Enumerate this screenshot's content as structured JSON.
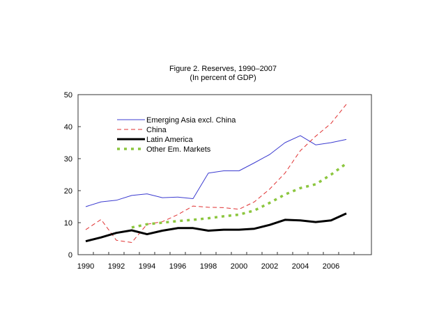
{
  "chart_data": {
    "type": "line",
    "title": "Figure 2. Reserves, 1990–2007",
    "subtitle": "(In percent of GDP)",
    "xlabel": "",
    "ylabel": "",
    "x": [
      1990,
      1991,
      1992,
      1993,
      1994,
      1995,
      1996,
      1997,
      1998,
      1999,
      2000,
      2001,
      2002,
      2003,
      2004,
      2005,
      2006,
      2007
    ],
    "xticks": [
      "1990",
      "1992",
      "1994",
      "1996",
      "1998",
      "2000",
      "2002",
      "2004",
      "2006"
    ],
    "yticks": [
      "0",
      "10",
      "20",
      "30",
      "40",
      "50"
    ],
    "ylim": [
      0,
      50
    ],
    "grid": false,
    "legend_position": "top-left",
    "series": [
      {
        "name": "Emerging Asia excl. China",
        "color": "#3b3bd0",
        "style": "solid-thin",
        "values": [
          15,
          16.5,
          17,
          18.5,
          19,
          17.8,
          18,
          17.5,
          25.5,
          26.2,
          26.2,
          28.7,
          31.3,
          35,
          37.2,
          34.3,
          35,
          36
        ]
      },
      {
        "name": "China",
        "color": "#e03030",
        "style": "dashed",
        "values": [
          7.8,
          11,
          4.5,
          3.8,
          9.5,
          10.3,
          12.5,
          15.2,
          14.8,
          14.7,
          14.2,
          16.5,
          20.5,
          25.5,
          32.5,
          37,
          41,
          47
        ]
      },
      {
        "name": "Latin America",
        "color": "#000000",
        "style": "solid-thick",
        "values": [
          4.2,
          5.4,
          6.8,
          7.6,
          6.4,
          7.5,
          8.3,
          8.3,
          7.5,
          7.8,
          7.8,
          8.1,
          9.3,
          10.9,
          10.7,
          10.2,
          10.7,
          12.9
        ]
      },
      {
        "name": "Other Em. Markets",
        "color": "#8cc63f",
        "style": "dotted",
        "values": [
          null,
          null,
          null,
          8.5,
          9.5,
          10.0,
          10.5,
          10.9,
          11.4,
          12.0,
          12.5,
          13.8,
          16.2,
          18.8,
          20.8,
          22.0,
          25,
          28.5
        ]
      }
    ]
  }
}
